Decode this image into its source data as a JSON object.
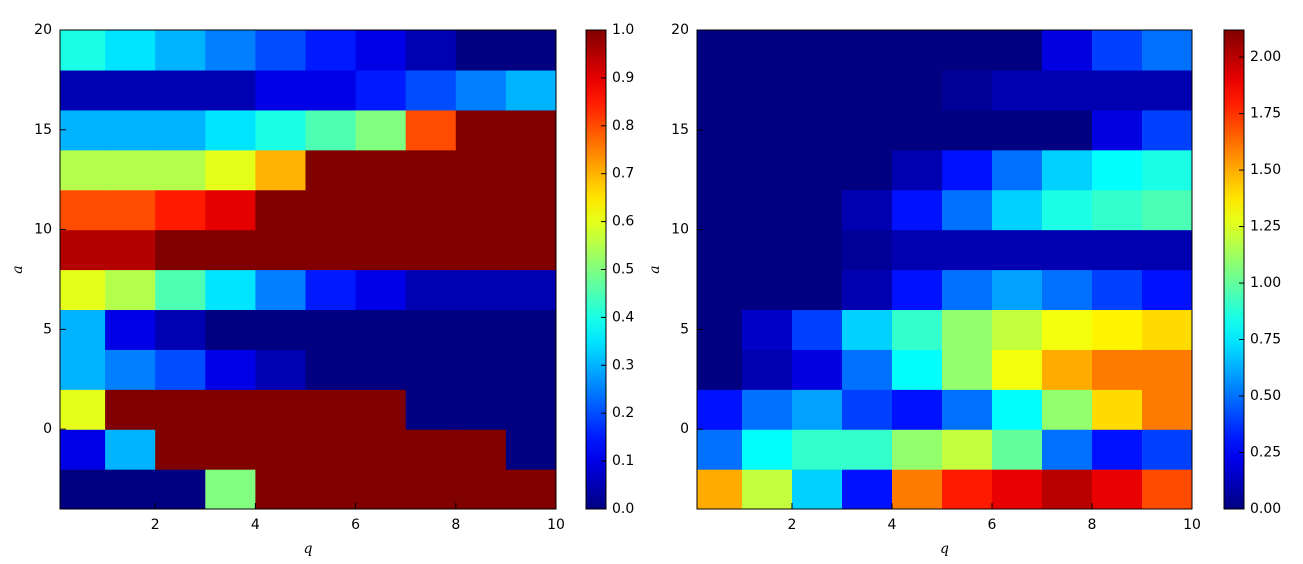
{
  "chart_data": [
    {
      "type": "heatmap",
      "xlabel": "q",
      "ylabel": "a",
      "xlim": [
        0.1,
        10
      ],
      "xticks": [
        2,
        4,
        6,
        8,
        10
      ],
      "ylim": [
        -4,
        20
      ],
      "yticks": [
        0,
        5,
        10,
        15,
        20
      ],
      "xbins": [
        0,
        1,
        2,
        3,
        4,
        5,
        6,
        7,
        8,
        9,
        10
      ],
      "ybins": [
        -4,
        -2,
        0,
        2,
        4,
        6,
        8,
        10,
        12,
        14,
        16,
        18,
        20
      ],
      "z": [
        [
          0,
          0,
          0,
          0.5,
          1,
          1,
          1,
          1,
          1,
          1
        ],
        [
          0.1,
          0.3,
          1,
          1,
          1,
          1,
          1,
          1,
          1,
          0
        ],
        [
          0.6,
          1,
          1,
          1,
          1,
          1,
          1,
          0,
          0,
          0
        ],
        [
          0.3,
          0.25,
          0.2,
          0.1,
          0.05,
          0,
          0,
          0,
          0,
          0
        ],
        [
          0.3,
          0.1,
          0.05,
          0,
          0,
          0,
          0,
          0,
          0,
          0
        ],
        [
          0.6,
          0.55,
          0.45,
          0.35,
          0.25,
          0.15,
          0.1,
          0.05,
          0.05,
          0.05
        ],
        [
          0.95,
          0.95,
          1,
          1,
          1,
          1,
          1,
          1,
          1,
          1
        ],
        [
          0.8,
          0.8,
          0.85,
          0.9,
          1,
          1,
          1,
          1,
          1,
          1
        ],
        [
          0.55,
          0.55,
          0.55,
          0.6,
          0.7,
          1,
          1,
          1,
          1,
          1
        ],
        [
          0.3,
          0.3,
          0.3,
          0.35,
          0.4,
          0.45,
          0.5,
          0.8,
          1,
          1
        ],
        [
          0.05,
          0.05,
          0.05,
          0.05,
          0.1,
          0.1,
          0.15,
          0.2,
          0.25,
          0.3
        ],
        [
          0.4,
          0.35,
          0.3,
          0.25,
          0.2,
          0.15,
          0.1,
          0.05,
          0,
          0
        ]
      ],
      "clim": [
        0,
        1
      ],
      "cticks": [
        {
          "value": 0,
          "label": "0.0"
        },
        {
          "value": 0.1,
          "label": "0.1"
        },
        {
          "value": 0.2,
          "label": "0.2"
        },
        {
          "value": 0.3,
          "label": "0.3"
        },
        {
          "value": 0.4,
          "label": "0.4"
        },
        {
          "value": 0.5,
          "label": "0.5"
        },
        {
          "value": 0.6,
          "label": "0.6"
        },
        {
          "value": 0.7,
          "label": "0.7"
        },
        {
          "value": 0.8,
          "label": "0.8"
        },
        {
          "value": 0.9,
          "label": "0.9"
        },
        {
          "value": 1,
          "label": "1.0"
        }
      ],
      "colormap": "jet"
    },
    {
      "type": "heatmap",
      "xlabel": "q",
      "ylabel": "a",
      "xlim": [
        0.1,
        10
      ],
      "xticks": [
        2,
        4,
        6,
        8,
        10
      ],
      "ylim": [
        -4,
        20
      ],
      "yticks": [
        0,
        5,
        10,
        15,
        20
      ],
      "xbins": [
        0,
        1,
        2,
        3,
        4,
        5,
        6,
        7,
        8,
        9,
        10
      ],
      "ybins": [
        -4,
        -2,
        0,
        2,
        4,
        6,
        8,
        10,
        12,
        14,
        16,
        18,
        20
      ],
      "z": [
        [
          1.5,
          1.2,
          0.7,
          0.3,
          1.6,
          1.8,
          1.9,
          2.0,
          1.9,
          1.7
        ],
        [
          0.5,
          0.8,
          0.9,
          0.9,
          1.1,
          1.2,
          1.0,
          0.5,
          0.3,
          0.4
        ],
        [
          0.3,
          0.5,
          0.6,
          0.4,
          0.3,
          0.5,
          0.8,
          1.1,
          1.4,
          1.6
        ],
        [
          0,
          0.1,
          0.2,
          0.5,
          0.8,
          1.1,
          1.3,
          1.5,
          1.6,
          1.6
        ],
        [
          0,
          0.15,
          0.4,
          0.7,
          0.9,
          1.1,
          1.2,
          1.3,
          1.35,
          1.4
        ],
        [
          0,
          0,
          0,
          0.1,
          0.3,
          0.5,
          0.6,
          0.5,
          0.4,
          0.3
        ],
        [
          0,
          0,
          0,
          0.05,
          0.1,
          0.1,
          0.1,
          0.1,
          0.1,
          0.1
        ],
        [
          0,
          0,
          0,
          0.1,
          0.3,
          0.5,
          0.7,
          0.85,
          0.9,
          0.95
        ],
        [
          0,
          0,
          0,
          0,
          0.1,
          0.3,
          0.5,
          0.7,
          0.8,
          0.85
        ],
        [
          0,
          0,
          0,
          0,
          0,
          0,
          0,
          0,
          0.2,
          0.4
        ],
        [
          0,
          0,
          0,
          0,
          0,
          0.05,
          0.1,
          0.1,
          0.1,
          0.1
        ],
        [
          0,
          0,
          0,
          0,
          0,
          0,
          0,
          0.2,
          0.4,
          0.5
        ]
      ],
      "clim": [
        0,
        2.12
      ],
      "cticks": [
        {
          "value": 0,
          "label": "0.00"
        },
        {
          "value": 0.25,
          "label": "0.25"
        },
        {
          "value": 0.5,
          "label": "0.50"
        },
        {
          "value": 0.75,
          "label": "0.75"
        },
        {
          "value": 1,
          "label": "1.00"
        },
        {
          "value": 1.25,
          "label": "1.25"
        },
        {
          "value": 1.5,
          "label": "1.50"
        },
        {
          "value": 1.75,
          "label": "1.75"
        },
        {
          "value": 2,
          "label": "2.00"
        }
      ],
      "colormap": "jet"
    }
  ]
}
